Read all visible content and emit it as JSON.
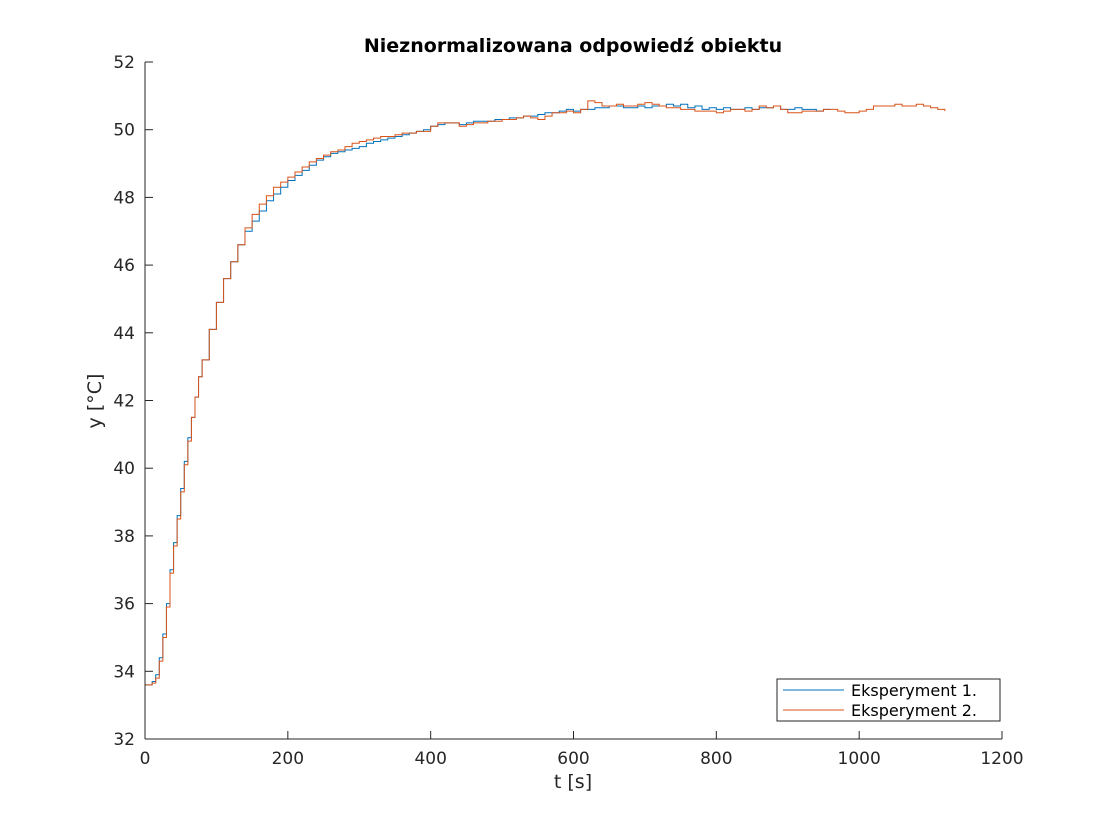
{
  "chart_data": {
    "type": "line",
    "title": "Nieznormalizowana odpowiedź obiektu",
    "xlabel": "t [s]",
    "ylabel": "y [°C]",
    "xlim": [
      0,
      1200
    ],
    "ylim": [
      32,
      52
    ],
    "xticks": [
      0,
      200,
      400,
      600,
      800,
      1000,
      1200
    ],
    "yticks": [
      32,
      34,
      36,
      38,
      40,
      42,
      44,
      46,
      48,
      50,
      52
    ],
    "grid": false,
    "legend_position": "bottom-right",
    "series": [
      {
        "name": "Eksperyment 1.",
        "color": "#0072BD",
        "x": [
          0,
          10,
          15,
          20,
          25,
          30,
          35,
          40,
          45,
          50,
          55,
          60,
          65,
          70,
          75,
          80,
          90,
          100,
          110,
          120,
          130,
          140,
          150,
          160,
          170,
          180,
          190,
          200,
          210,
          220,
          230,
          240,
          250,
          260,
          270,
          280,
          290,
          300,
          310,
          320,
          330,
          340,
          350,
          360,
          370,
          380,
          390,
          400,
          410,
          420,
          430,
          440,
          450,
          460,
          470,
          480,
          490,
          500,
          510,
          520,
          530,
          540,
          550,
          560,
          570,
          580,
          590,
          600,
          610,
          620,
          630,
          640,
          650,
          660,
          670,
          680,
          690,
          700,
          710,
          720,
          730,
          740,
          750,
          760,
          770,
          780,
          790,
          800,
          810,
          820,
          830,
          840,
          850,
          860,
          870,
          880,
          890,
          900,
          910,
          920,
          930,
          940,
          950,
          960
        ],
        "y": [
          33.6,
          33.7,
          33.9,
          34.4,
          35.1,
          36.0,
          37.0,
          37.8,
          38.6,
          39.4,
          40.2,
          40.9,
          41.5,
          42.1,
          42.7,
          43.2,
          44.1,
          44.9,
          45.6,
          46.1,
          46.6,
          47.0,
          47.3,
          47.6,
          47.9,
          48.1,
          48.3,
          48.5,
          48.65,
          48.8,
          48.95,
          49.1,
          49.2,
          49.3,
          49.35,
          49.4,
          49.45,
          49.5,
          49.6,
          49.65,
          49.7,
          49.75,
          49.8,
          49.85,
          49.9,
          49.95,
          50.0,
          50.1,
          50.15,
          50.2,
          50.2,
          50.15,
          50.2,
          50.25,
          50.25,
          50.25,
          50.3,
          50.3,
          50.35,
          50.35,
          50.4,
          50.4,
          50.45,
          50.5,
          50.5,
          50.55,
          50.6,
          50.55,
          50.6,
          50.6,
          50.65,
          50.65,
          50.7,
          50.7,
          50.65,
          50.65,
          50.7,
          50.65,
          50.7,
          50.7,
          50.75,
          50.7,
          50.75,
          50.65,
          50.7,
          50.6,
          50.65,
          50.6,
          50.65,
          50.6,
          50.6,
          50.65,
          50.6,
          50.65,
          50.65,
          50.7,
          50.6,
          50.6,
          50.65,
          50.6,
          50.6,
          50.55,
          50.6,
          50.6
        ]
      },
      {
        "name": "Eksperyment 2.",
        "color": "#D95319",
        "x": [
          0,
          10,
          15,
          20,
          25,
          30,
          35,
          40,
          45,
          50,
          55,
          60,
          65,
          70,
          75,
          80,
          90,
          100,
          110,
          120,
          130,
          140,
          150,
          160,
          170,
          180,
          190,
          200,
          210,
          220,
          230,
          240,
          250,
          260,
          270,
          280,
          290,
          300,
          310,
          320,
          330,
          340,
          350,
          360,
          370,
          380,
          390,
          400,
          410,
          420,
          430,
          440,
          450,
          460,
          470,
          480,
          490,
          500,
          510,
          520,
          530,
          540,
          550,
          560,
          570,
          580,
          590,
          600,
          610,
          620,
          630,
          640,
          650,
          660,
          670,
          680,
          690,
          700,
          710,
          720,
          730,
          740,
          750,
          760,
          770,
          780,
          790,
          800,
          810,
          820,
          830,
          840,
          850,
          860,
          870,
          880,
          890,
          900,
          910,
          920,
          930,
          940,
          950,
          960,
          970,
          980,
          990,
          1000,
          1010,
          1020,
          1030,
          1040,
          1050,
          1060,
          1070,
          1080,
          1090,
          1100,
          1110,
          1120
        ],
        "y": [
          33.6,
          33.65,
          33.8,
          34.3,
          35.0,
          35.9,
          36.9,
          37.7,
          38.5,
          39.3,
          40.1,
          40.8,
          41.5,
          42.1,
          42.7,
          43.2,
          44.1,
          44.9,
          45.6,
          46.1,
          46.6,
          47.1,
          47.5,
          47.8,
          48.05,
          48.3,
          48.45,
          48.6,
          48.75,
          48.9,
          49.05,
          49.15,
          49.25,
          49.35,
          49.4,
          49.5,
          49.6,
          49.65,
          49.7,
          49.75,
          49.8,
          49.8,
          49.85,
          49.9,
          49.9,
          49.95,
          49.95,
          50.1,
          50.2,
          50.2,
          50.2,
          50.1,
          50.15,
          50.2,
          50.2,
          50.25,
          50.25,
          50.3,
          50.3,
          50.35,
          50.4,
          50.35,
          50.3,
          50.4,
          50.5,
          50.5,
          50.55,
          50.5,
          50.6,
          50.85,
          50.8,
          50.7,
          50.7,
          50.75,
          50.7,
          50.7,
          50.75,
          50.8,
          50.75,
          50.7,
          50.65,
          50.65,
          50.6,
          50.6,
          50.55,
          50.55,
          50.55,
          50.5,
          50.55,
          50.6,
          50.6,
          50.55,
          50.6,
          50.7,
          50.65,
          50.7,
          50.6,
          50.5,
          50.5,
          50.55,
          50.55,
          50.55,
          50.6,
          50.6,
          50.55,
          50.5,
          50.5,
          50.55,
          50.6,
          50.7,
          50.7,
          50.7,
          50.75,
          50.7,
          50.7,
          50.75,
          50.7,
          50.65,
          50.6,
          50.55
        ]
      }
    ]
  }
}
